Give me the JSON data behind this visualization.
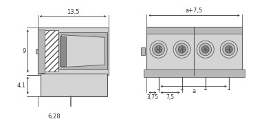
{
  "bg_color": "#ffffff",
  "lc": "#555555",
  "dc": "#333333",
  "gray_light": "#d4d4d4",
  "gray_mid": "#b8b8b8",
  "gray_dark": "#8a8a8a",
  "gray_darker": "#707070",
  "white": "#ffffff",
  "dim_13_5": "13,5",
  "dim_9": "9",
  "dim_4_1": "4,1",
  "dim_6_28": "6,28",
  "dim_a75": "a+7,5",
  "dim_3_75": "3,75",
  "dim_7_5": "7,5",
  "dim_a": "a",
  "n_terminals": 4
}
